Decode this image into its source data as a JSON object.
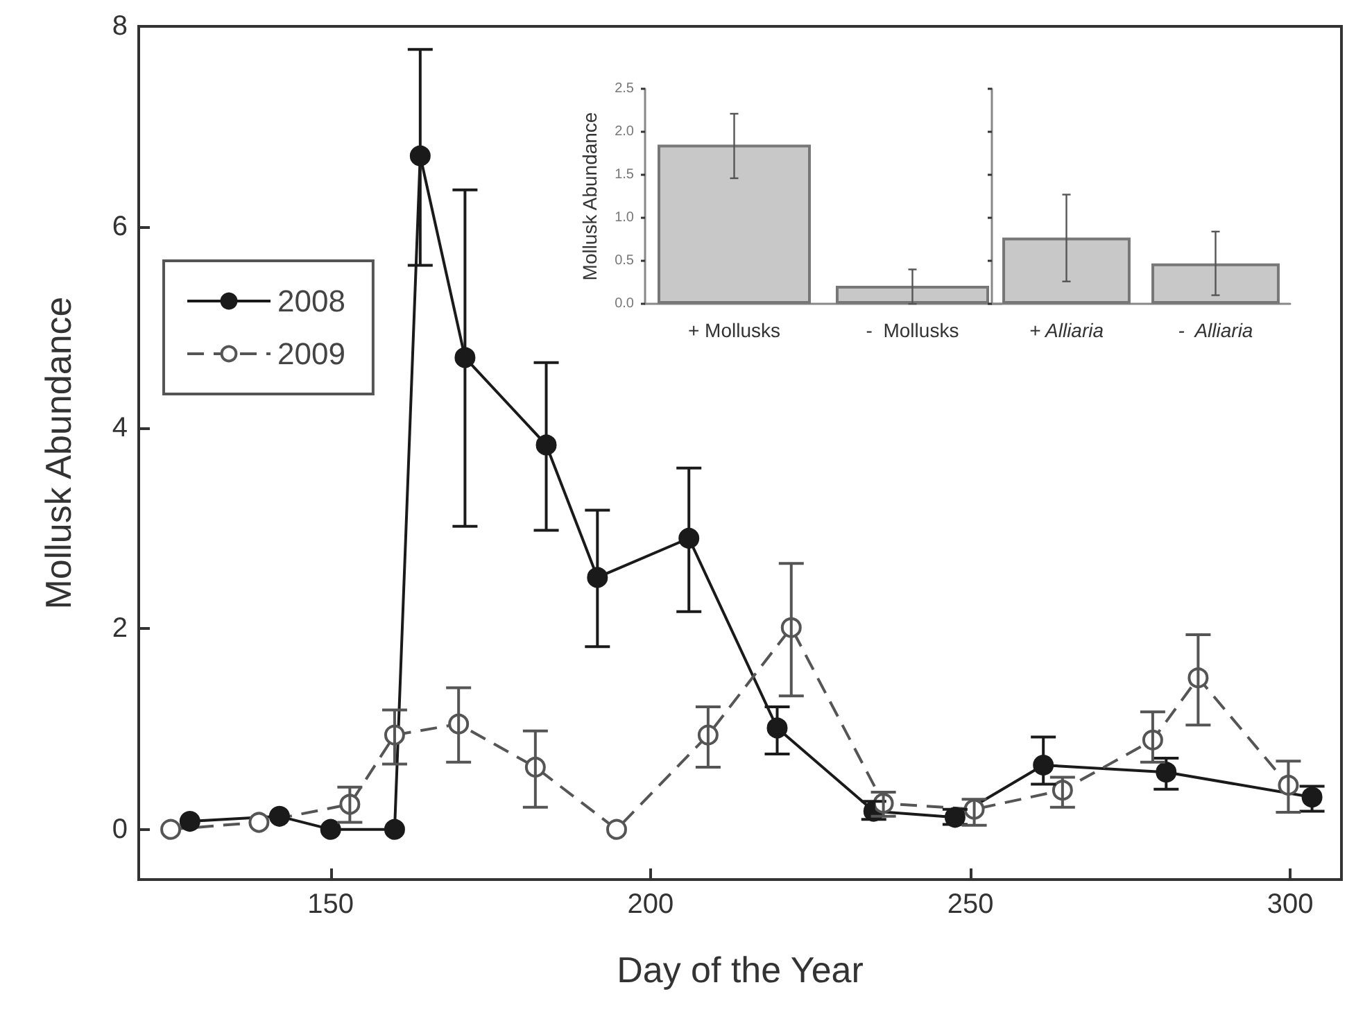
{
  "chart_data": [
    {
      "type": "line",
      "xlabel": "Day of the Year",
      "ylabel": "Mollusk Abundance",
      "xlim": [
        120,
        308
      ],
      "xticks": [
        150,
        200,
        250,
        300
      ],
      "ylim": [
        -0.5,
        8
      ],
      "yticks": [
        0,
        2,
        4,
        6,
        8
      ],
      "grid": false,
      "legend": "left",
      "marker": "circle",
      "series": [
        {
          "name": "2008",
          "color": "#1a1a1a",
          "line_style": "solid",
          "x": [
            128,
            142,
            150,
            160,
            164,
            171,
            183.7,
            191.7,
            206,
            219.8,
            234.9,
            247.6,
            261.4,
            280.6,
            303.4
          ],
          "values": [
            0.08,
            0.13,
            0,
            0,
            6.71,
            4.7,
            3.83,
            2.51,
            2.9,
            1.01,
            0.18,
            0.12,
            0.64,
            0.57,
            0.32
          ],
          "errors": [
            null,
            null,
            null,
            null,
            [
              5.62,
              7.77
            ],
            [
              3.02,
              6.37
            ],
            [
              2.98,
              4.65
            ],
            [
              1.82,
              3.18
            ],
            [
              2.17,
              3.6
            ],
            [
              0.75,
              1.22
            ],
            [
              0.1,
              0.28
            ],
            [
              0.05,
              0.2
            ],
            [
              0.45,
              0.92
            ],
            [
              0.4,
              0.71
            ],
            [
              0.18,
              0.43
            ]
          ]
        },
        {
          "name": "2009",
          "color": "#555555",
          "line_style": "dashed",
          "x": [
            125,
            138.8,
            153,
            160,
            170,
            182,
            194.7,
            209,
            222,
            236.4,
            250.6,
            264.4,
            278.5,
            285.6,
            299.7
          ],
          "values": [
            0,
            0.07,
            0.25,
            0.94,
            1.05,
            0.62,
            0,
            0.94,
            2.01,
            0.26,
            0.2,
            0.39,
            0.89,
            1.51,
            0.44
          ],
          "errors": [
            null,
            null,
            [
              0.07,
              0.42
            ],
            [
              0.65,
              1.19
            ],
            [
              0.67,
              1.41
            ],
            [
              0.22,
              0.98
            ],
            null,
            [
              0.62,
              1.22
            ],
            [
              1.33,
              2.65
            ],
            [
              0.13,
              0.37
            ],
            [
              0.04,
              0.3
            ],
            [
              0.22,
              0.52
            ],
            [
              0.67,
              1.17
            ],
            [
              1.04,
              1.94
            ],
            [
              0.17,
              0.68
            ]
          ]
        }
      ]
    },
    {
      "type": "bar",
      "ylabel": "Mollusk Abundance",
      "categories": [
        "+ Mollusks",
        "-  Mollusks"
      ],
      "ylim": [
        0,
        2.5
      ],
      "yticks": [
        {
          "value": 0,
          "label": "0.0"
        },
        0.5,
        {
          "value": 1,
          "label": "1.0"
        },
        1.5,
        {
          "value": 2,
          "label": "2.0"
        },
        2.5
      ],
      "grid": false,
      "series": [
        {
          "color": "#c8c8c8",
          "values": [
            1.85,
            0.21
          ],
          "errors": [
            [
              1.46,
              2.21
            ],
            [
              0,
              0.4
            ]
          ]
        }
      ]
    },
    {
      "type": "bar",
      "categories": [
        "+ Alliaria",
        "-  Alliaria"
      ],
      "ylim": [
        0,
        2.5
      ],
      "yticks": [
        0,
        0.5,
        1,
        1.5,
        2,
        2.5
      ],
      "grid": false,
      "tick_labels": "x",
      "series": [
        {
          "color": "#c8c8c8",
          "values": [
            0.77,
            0.47
          ],
          "errors": [
            [
              0.26,
              1.27
            ],
            [
              0.1,
              0.84
            ]
          ]
        }
      ]
    }
  ]
}
